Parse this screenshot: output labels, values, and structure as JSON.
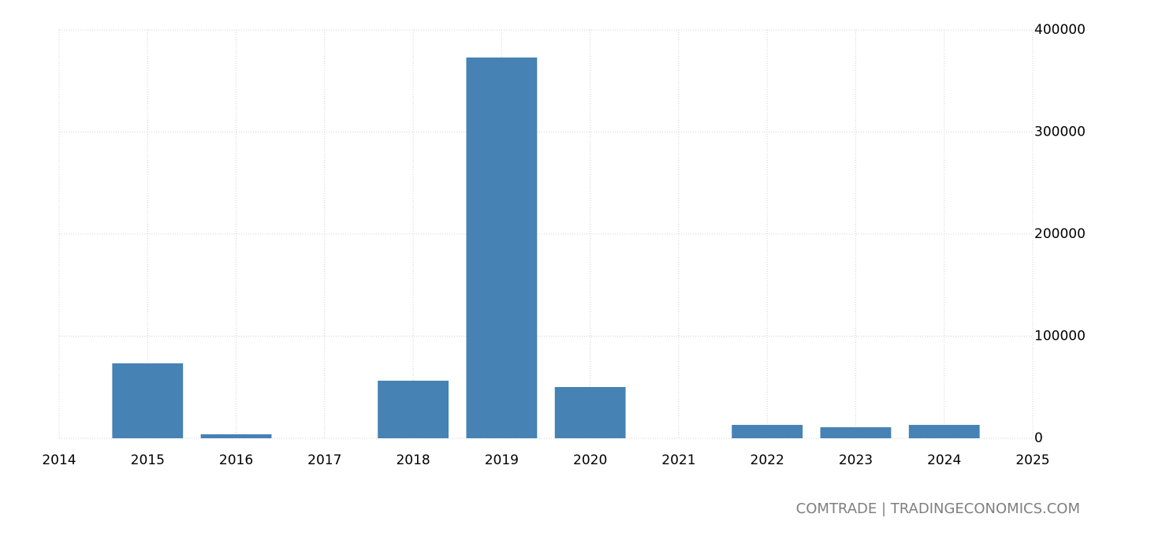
{
  "chart_data": {
    "type": "bar",
    "x": [
      2015,
      2016,
      2017,
      2018,
      2019,
      2020,
      2021,
      2022,
      2023,
      2024
    ],
    "values": [
      73400,
      3900,
      null,
      56400,
      373000,
      50200,
      null,
      13100,
      10800,
      13100
    ],
    "color": "#4682b4",
    "xlim": [
      2014,
      2025
    ],
    "xticks": [
      2014,
      2015,
      2016,
      2017,
      2018,
      2019,
      2020,
      2021,
      2022,
      2023,
      2024,
      2025
    ],
    "ylim": [
      0,
      400000
    ],
    "yticks": [
      0,
      100000,
      200000,
      300000,
      400000
    ],
    "grid": true,
    "source": "COMTRADE | TRADINGECONOMICS.COM"
  }
}
